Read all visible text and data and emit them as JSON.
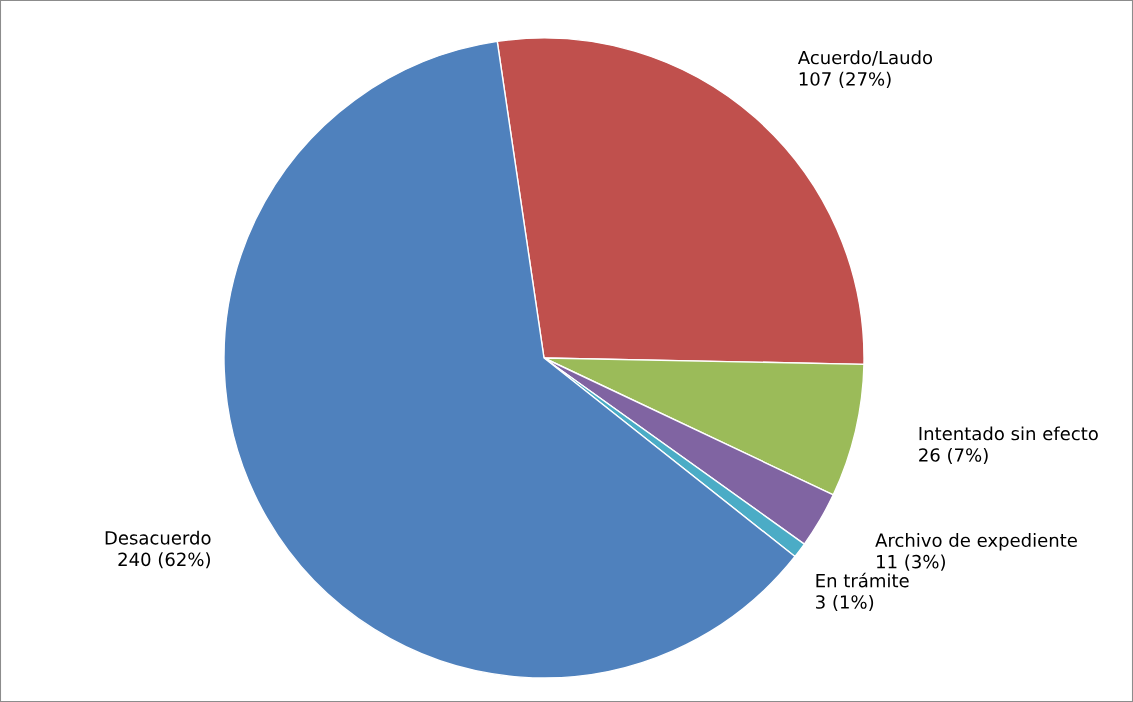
{
  "chart_data": {
    "type": "pie",
    "categories": [
      "Acuerdo/Laudo",
      "Intentado sin efecto",
      "Archivo de expediente",
      "En trámite",
      "Desacuerdo"
    ],
    "values": [
      107,
      26,
      11,
      3,
      240
    ],
    "colors": [
      "#c0504d",
      "#9bbb59",
      "#8064a2",
      "#4bacc6",
      "#4f81bd"
    ],
    "value_labels": [
      "107 (27%)",
      "26 (7%)",
      "11 (3%)",
      "3 (1%)",
      "240 (62%)"
    ]
  }
}
